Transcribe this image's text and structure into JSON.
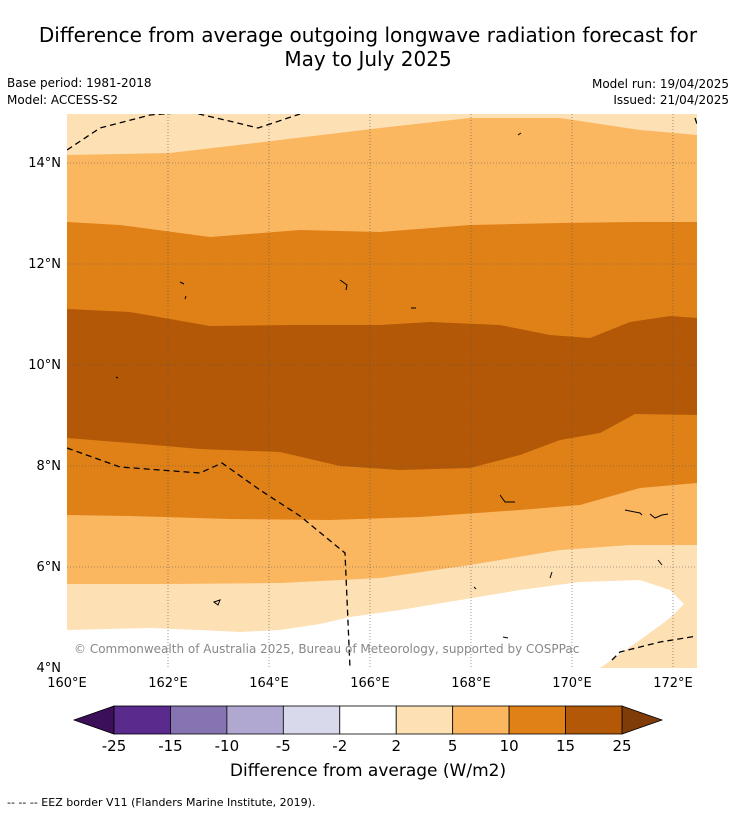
{
  "title_line1": "Difference from average outgoing longwave radiation forecast for",
  "title_line2": "May to July 2025",
  "base_period": "Base period: 1981-2018",
  "model": "Model: ACCESS-S2",
  "model_run": "Model run: 19/04/2025",
  "issued": "Issued: 21/04/2025",
  "copyright": "© Commonwealth of Australia 2025, Bureau of Meteorology, supported by COSPPac",
  "x_ticks": [
    "160°E",
    "162°E",
    "164°E",
    "166°E",
    "168°E",
    "170°E",
    "172°E"
  ],
  "y_ticks": [
    "4°N",
    "6°N",
    "8°N",
    "10°N",
    "12°N",
    "14°N"
  ],
  "colorbar": {
    "title": "Difference from average (W/m2)",
    "labels": [
      "-25",
      "-15",
      "-10",
      "-5",
      "-2",
      "2",
      "5",
      "10",
      "15",
      "25"
    ],
    "colors": [
      "#5a2a8c",
      "#8674b2",
      "#b1a8d2",
      "#d9d9ec",
      "#ffffff",
      "#fde0b4",
      "#fbb660",
      "#e08117",
      "#b35806"
    ],
    "under_color": "#3b0f5a",
    "over_color": "#7f3b08"
  },
  "legend_note": "-- -- -- EEZ border V11 (Flanders Marine Institute, 2019)."
}
